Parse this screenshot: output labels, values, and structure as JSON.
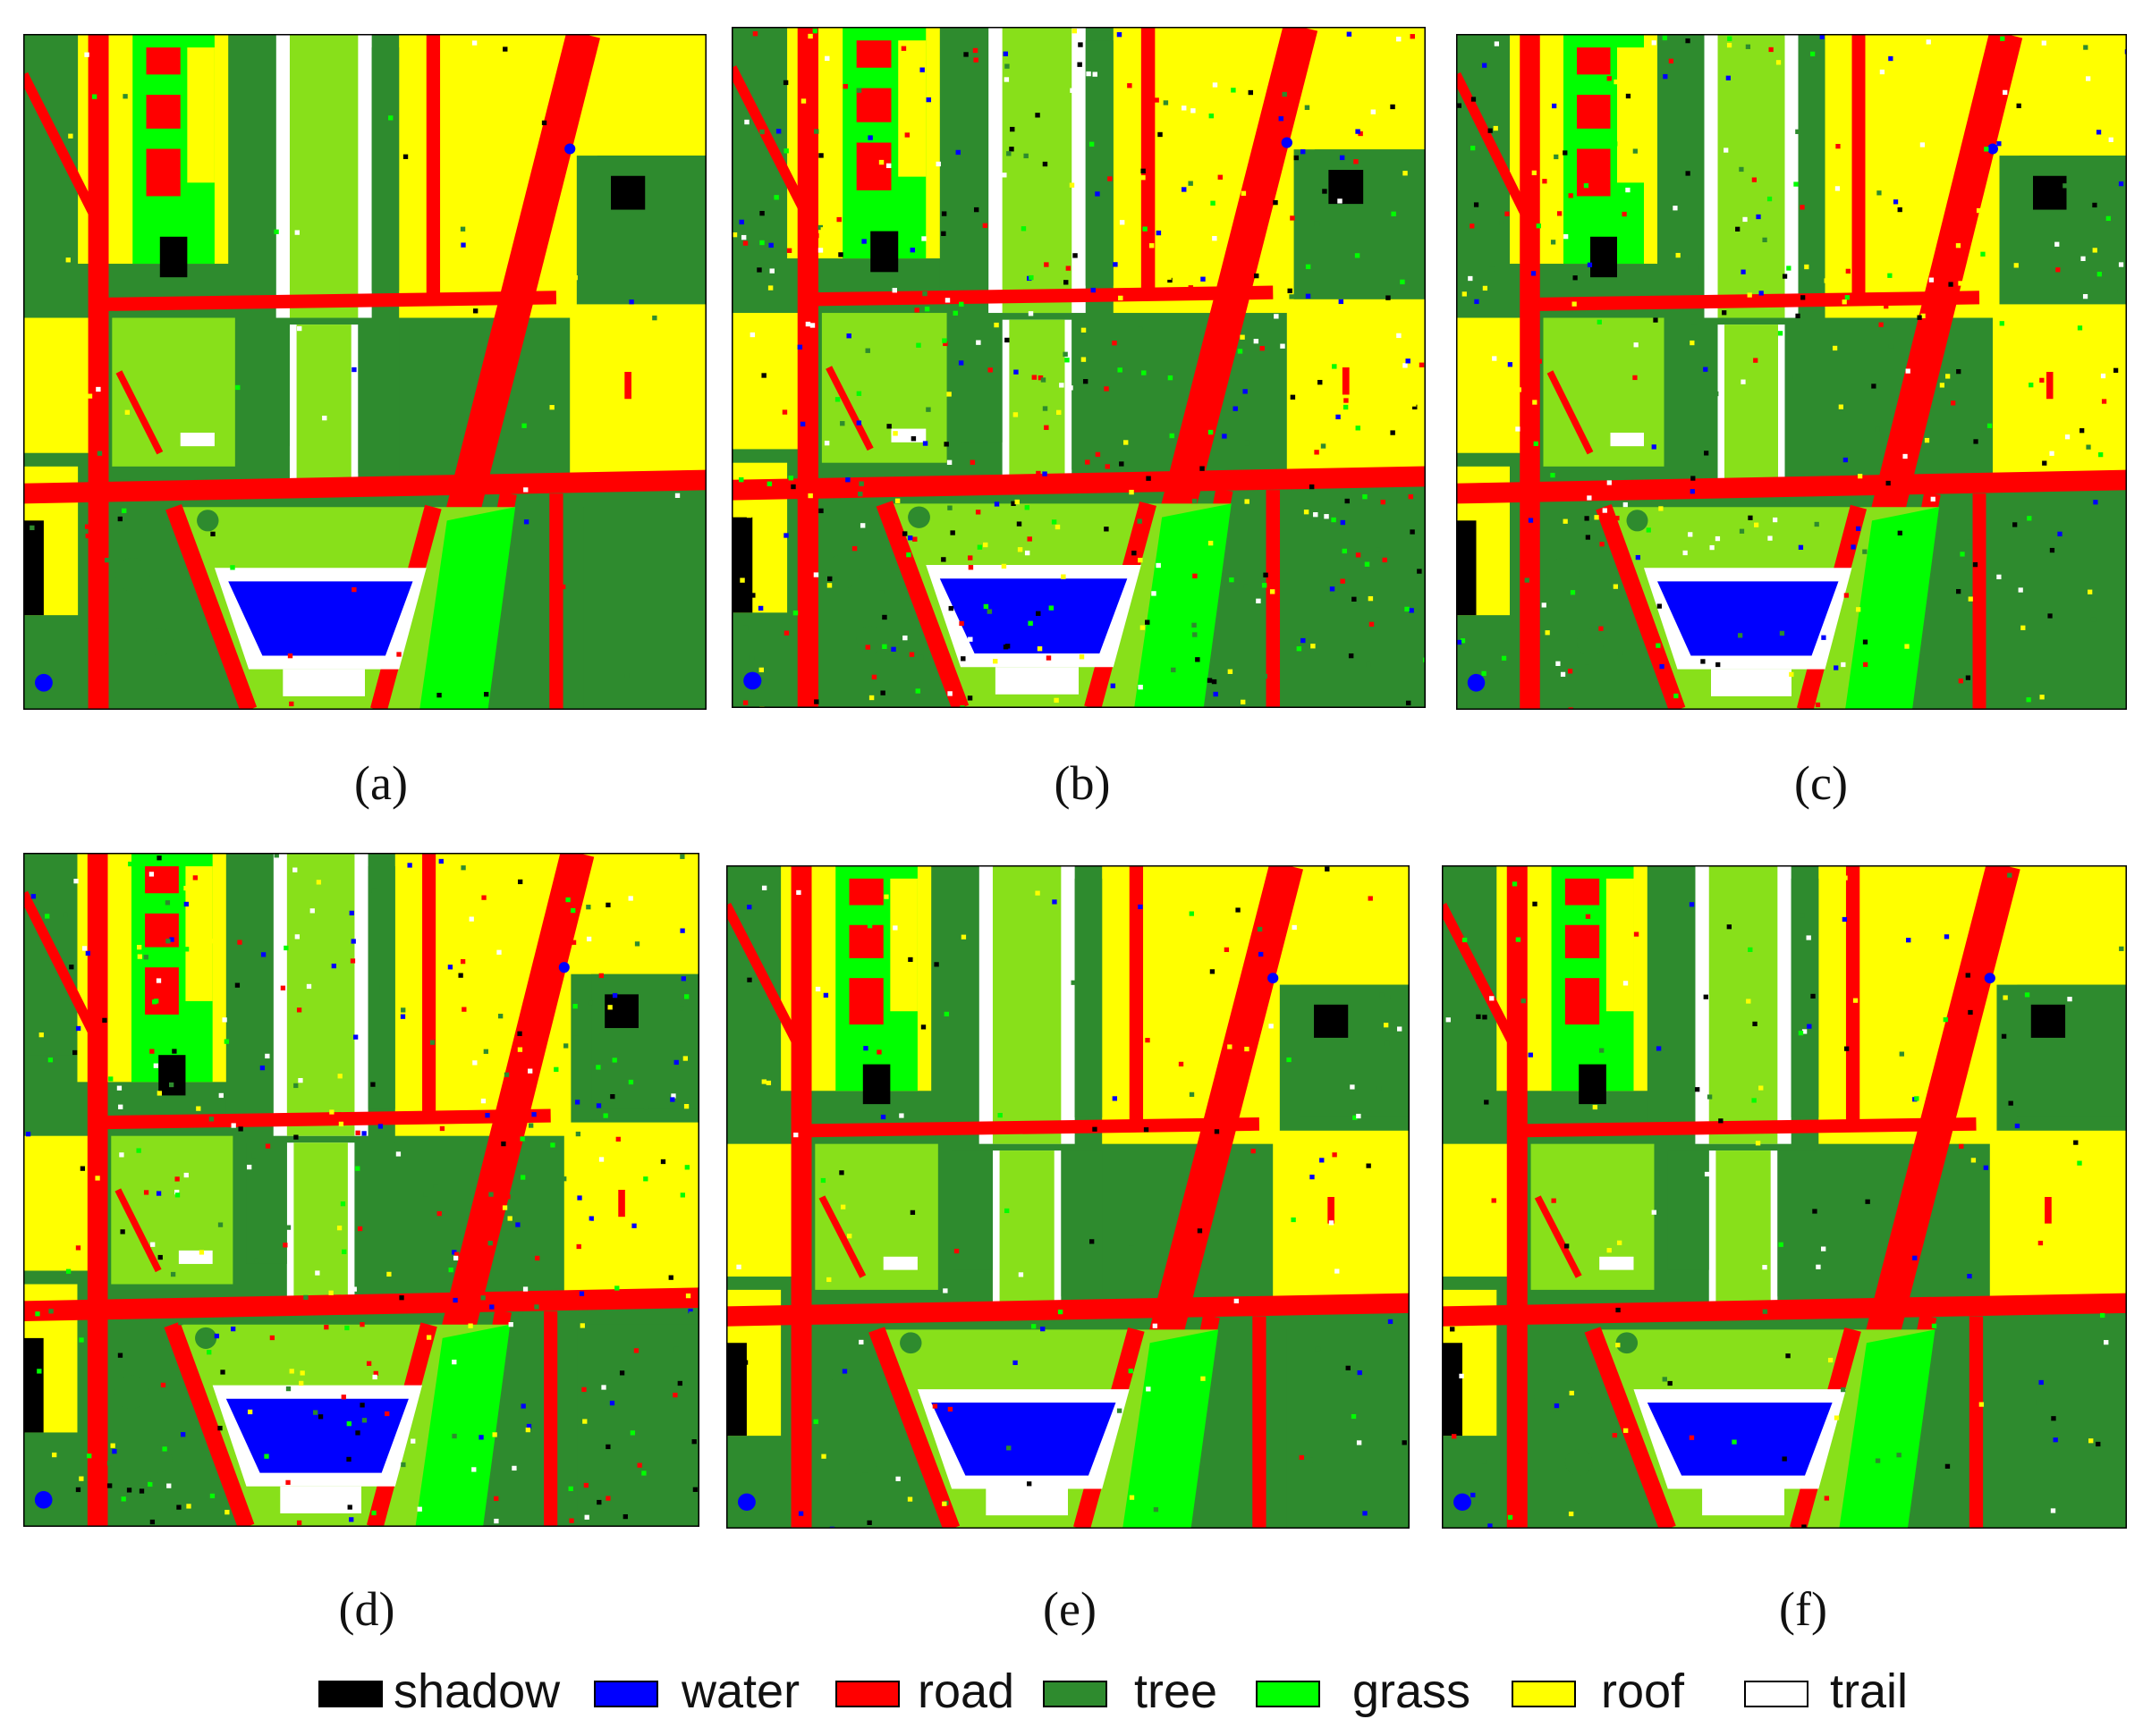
{
  "classes": [
    {
      "key": "shadow",
      "label": "shadow",
      "color": "#000000"
    },
    {
      "key": "water",
      "label": "water",
      "color": "#0000ff"
    },
    {
      "key": "road",
      "label": "road",
      "color": "#ff0000"
    },
    {
      "key": "tree",
      "label": "tree",
      "color": "#2e8b2e"
    },
    {
      "key": "grass",
      "label": "grass",
      "color": "#00ff00"
    },
    {
      "key": "roof",
      "label": "roof",
      "color": "#ffff00"
    },
    {
      "key": "trail",
      "label": "trail",
      "color": "#ffffff"
    }
  ],
  "map_colors": {
    "grass_field": "#88e01a",
    "grass_bright": "#00ff00"
  },
  "panels": [
    {
      "label": "(a)",
      "noise": 0.02
    },
    {
      "label": "(b)",
      "noise": 0.16
    },
    {
      "label": "(c)",
      "noise": 0.11
    },
    {
      "label": "(d)",
      "noise": 0.13
    },
    {
      "label": "(e)",
      "noise": 0.05
    },
    {
      "label": "(f)",
      "noise": 0.05
    }
  ]
}
